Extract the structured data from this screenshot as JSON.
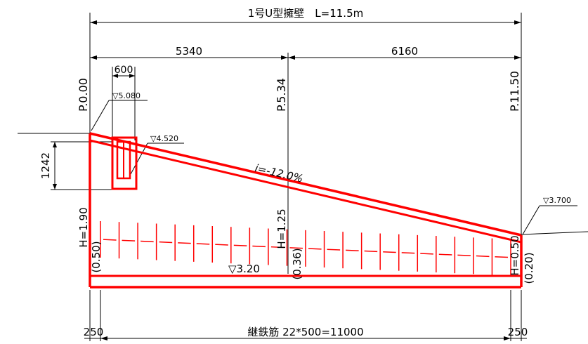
{
  "drawing": {
    "title": "1号U型擁壁　L=11.5m",
    "dim_left_span": "5340",
    "dim_right_span": "6160",
    "dim_box_width": "600",
    "dim_height_left": "1242",
    "station_start": "P.0.00",
    "station_mid": "P.5.34",
    "station_end": "P.11.50",
    "level_box_top": "▽5.080",
    "level_box_inner": "▽4.520",
    "level_right": "▽3.700",
    "slope": "i=-12.0%",
    "height_left": "H=1.90",
    "height_left_sub": "(0.50)",
    "height_mid": "H=1.25",
    "height_mid_sub": "(0.36)",
    "height_right": "H=0.50",
    "height_right_sub": "(0.20)",
    "base_level": "▽3.20",
    "rebar_note": "継鉄筋 22*500=11000",
    "end_left": "250",
    "end_right": "250"
  },
  "colors": {
    "wall": "#ff0000",
    "dimension": "#000000"
  }
}
